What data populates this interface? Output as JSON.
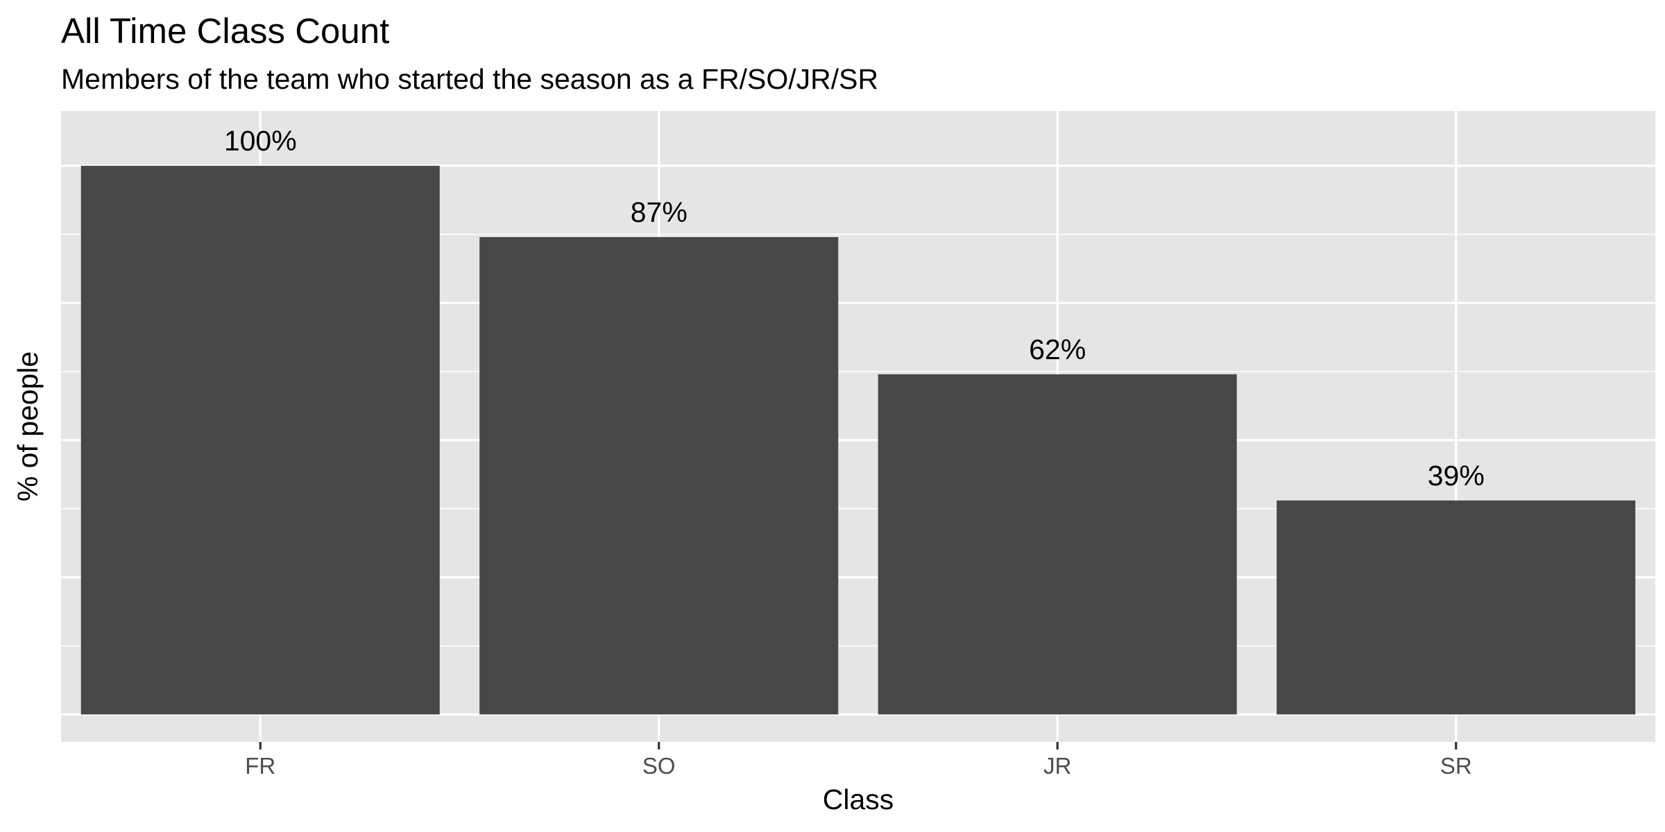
{
  "chart_data": {
    "type": "bar",
    "title": "All Time Class Count",
    "subtitle": "Members of the team who started the season as a FR/SO/JR/SR",
    "xlabel": "Class",
    "ylabel": "% of people",
    "categories": [
      "FR",
      "SO",
      "JR",
      "SR"
    ],
    "values": [
      100,
      87,
      62,
      39
    ],
    "data_labels": [
      "100%",
      "87%",
      "62%",
      "39%"
    ],
    "ylim": [
      -5,
      110
    ],
    "y_tick_labels_shown": false,
    "grid": true,
    "bar_color": "#474747",
    "panel_background": "#e5e5e5",
    "grid_color": "#ffffff"
  }
}
